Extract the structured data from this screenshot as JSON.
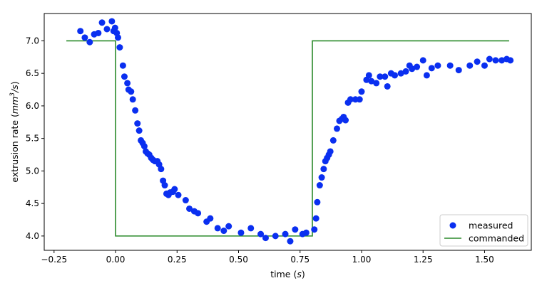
{
  "chart_data": {
    "type": "scatter",
    "xlabel_text": "time (",
    "xlabel_unit": "s",
    "xlabel_close": ")",
    "ylabel_text": "extrusion rate (",
    "ylabel_unit": "mm",
    "ylabel_exp": "3",
    "ylabel_rest": "/s",
    "ylabel_close": ")",
    "xlim": [
      -0.29,
      1.69
    ],
    "ylim": [
      3.78,
      7.42
    ],
    "xticks": [
      -0.25,
      0.0,
      0.25,
      0.5,
      0.75,
      1.0,
      1.25,
      1.5
    ],
    "xtick_labels": [
      "−0.25",
      "0.00",
      "0.25",
      "0.50",
      "0.75",
      "1.00",
      "1.25",
      "1.50"
    ],
    "yticks": [
      4.0,
      4.5,
      5.0,
      5.5,
      6.0,
      6.5,
      7.0
    ],
    "ytick_labels": [
      "4.0",
      "4.5",
      "5.0",
      "5.5",
      "6.0",
      "6.5",
      "7.0"
    ],
    "grid": false,
    "legend_position": "bottom-right",
    "colors": {
      "measured": "#0a2ff0",
      "commanded": "#2a8a2a"
    },
    "series": [
      {
        "name": "measured",
        "kind": "scatter",
        "points": [
          [
            -0.143,
            7.15
          ],
          [
            -0.125,
            7.05
          ],
          [
            -0.105,
            6.98
          ],
          [
            -0.087,
            7.1
          ],
          [
            -0.07,
            7.12
          ],
          [
            -0.055,
            7.28
          ],
          [
            -0.035,
            7.18
          ],
          [
            -0.015,
            7.3
          ],
          [
            -0.008,
            7.15
          ],
          [
            -0.002,
            7.2
          ],
          [
            0.005,
            7.12
          ],
          [
            0.01,
            7.05
          ],
          [
            0.017,
            6.9
          ],
          [
            0.03,
            6.62
          ],
          [
            0.036,
            6.45
          ],
          [
            0.048,
            6.35
          ],
          [
            0.053,
            6.25
          ],
          [
            0.063,
            6.22
          ],
          [
            0.07,
            6.1
          ],
          [
            0.08,
            5.93
          ],
          [
            0.089,
            5.73
          ],
          [
            0.096,
            5.62
          ],
          [
            0.103,
            5.47
          ],
          [
            0.11,
            5.43
          ],
          [
            0.117,
            5.38
          ],
          [
            0.123,
            5.3
          ],
          [
            0.13,
            5.27
          ],
          [
            0.137,
            5.25
          ],
          [
            0.145,
            5.2
          ],
          [
            0.152,
            5.17
          ],
          [
            0.16,
            5.15
          ],
          [
            0.17,
            5.15
          ],
          [
            0.177,
            5.1
          ],
          [
            0.185,
            5.03
          ],
          [
            0.193,
            4.85
          ],
          [
            0.2,
            4.78
          ],
          [
            0.207,
            4.65
          ],
          [
            0.215,
            4.63
          ],
          [
            0.222,
            4.67
          ],
          [
            0.233,
            4.68
          ],
          [
            0.24,
            4.72
          ],
          [
            0.255,
            4.63
          ],
          [
            0.285,
            4.55
          ],
          [
            0.3,
            4.42
          ],
          [
            0.32,
            4.38
          ],
          [
            0.335,
            4.35
          ],
          [
            0.37,
            4.22
          ],
          [
            0.385,
            4.27
          ],
          [
            0.415,
            4.12
          ],
          [
            0.44,
            4.08
          ],
          [
            0.46,
            4.15
          ],
          [
            0.51,
            4.05
          ],
          [
            0.55,
            4.12
          ],
          [
            0.59,
            4.03
          ],
          [
            0.61,
            3.97
          ],
          [
            0.65,
            4.0
          ],
          [
            0.69,
            4.03
          ],
          [
            0.71,
            3.92
          ],
          [
            0.73,
            4.1
          ],
          [
            0.76,
            4.03
          ],
          [
            0.775,
            4.05
          ],
          [
            0.808,
            4.1
          ],
          [
            0.815,
            4.27
          ],
          [
            0.82,
            4.52
          ],
          [
            0.83,
            4.78
          ],
          [
            0.838,
            4.9
          ],
          [
            0.846,
            5.03
          ],
          [
            0.853,
            5.15
          ],
          [
            0.86,
            5.2
          ],
          [
            0.867,
            5.25
          ],
          [
            0.873,
            5.3
          ],
          [
            0.885,
            5.47
          ],
          [
            0.9,
            5.65
          ],
          [
            0.91,
            5.77
          ],
          [
            0.92,
            5.8
          ],
          [
            0.927,
            5.83
          ],
          [
            0.935,
            5.78
          ],
          [
            0.945,
            6.05
          ],
          [
            0.955,
            6.1
          ],
          [
            0.975,
            6.1
          ],
          [
            0.992,
            6.1
          ],
          [
            1.0,
            6.22
          ],
          [
            1.02,
            6.4
          ],
          [
            1.03,
            6.47
          ],
          [
            1.04,
            6.38
          ],
          [
            1.06,
            6.35
          ],
          [
            1.075,
            6.45
          ],
          [
            1.095,
            6.45
          ],
          [
            1.105,
            6.3
          ],
          [
            1.12,
            6.5
          ],
          [
            1.135,
            6.47
          ],
          [
            1.16,
            6.5
          ],
          [
            1.18,
            6.53
          ],
          [
            1.195,
            6.62
          ],
          [
            1.205,
            6.57
          ],
          [
            1.225,
            6.6
          ],
          [
            1.25,
            6.7
          ],
          [
            1.265,
            6.47
          ],
          [
            1.285,
            6.58
          ],
          [
            1.31,
            6.62
          ],
          [
            1.36,
            6.62
          ],
          [
            1.395,
            6.55
          ],
          [
            1.44,
            6.62
          ],
          [
            1.47,
            6.68
          ],
          [
            1.5,
            6.62
          ],
          [
            1.52,
            6.72
          ],
          [
            1.545,
            6.7
          ],
          [
            1.57,
            6.7
          ],
          [
            1.59,
            6.72
          ],
          [
            1.605,
            6.7
          ]
        ]
      },
      {
        "name": "commanded",
        "kind": "step-line",
        "points": [
          [
            -0.2,
            7.0
          ],
          [
            0.0,
            7.0
          ],
          [
            0.0,
            4.0
          ],
          [
            0.8,
            4.0
          ],
          [
            0.8,
            7.0
          ],
          [
            1.6,
            7.0
          ]
        ]
      }
    ]
  }
}
